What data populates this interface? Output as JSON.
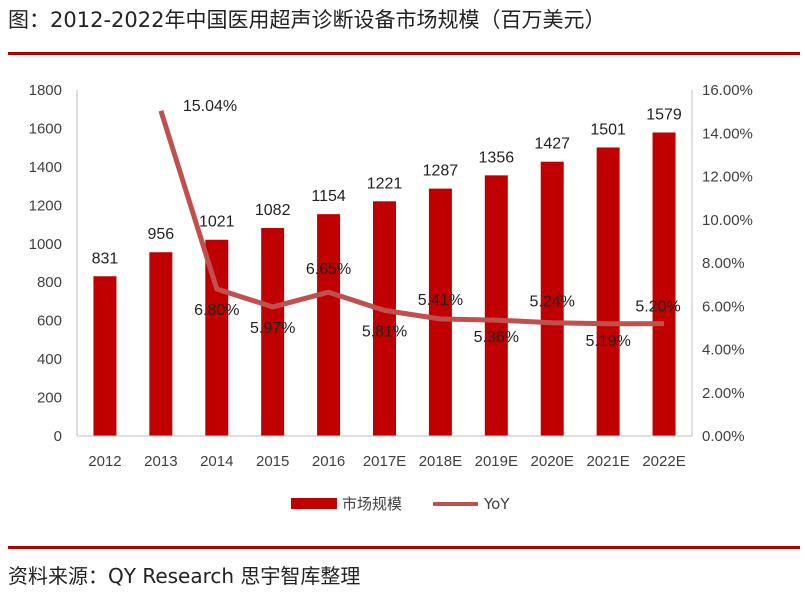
{
  "header": {
    "title": "图：2012-2022年中国医用超声诊断设备市场规模（百万美元）"
  },
  "footer": {
    "source": "资料来源：QY Research  思宇智库整理"
  },
  "chart_data": {
    "type": "bar",
    "categories": [
      "2012",
      "2013",
      "2014",
      "2015",
      "2016",
      "2017E",
      "2018E",
      "2019E",
      "2020E",
      "2021E",
      "2022E"
    ],
    "series": [
      {
        "name": "市场规模",
        "type": "bar",
        "axis": "left",
        "values": [
          831,
          956,
          1021,
          1082,
          1154,
          1221,
          1287,
          1356,
          1427,
          1501,
          1579
        ],
        "labels": [
          "831",
          "956",
          "1021",
          "1082",
          "1154",
          "1221",
          "1287",
          "1356",
          "1427",
          "1501",
          "1579"
        ],
        "color": "#c00000"
      },
      {
        "name": "YoY",
        "type": "line",
        "axis": "right",
        "values": [
          null,
          15.04,
          6.8,
          5.97,
          6.65,
          5.81,
          5.41,
          5.36,
          5.24,
          5.19,
          5.2
        ],
        "labels": [
          "",
          "15.04%",
          "6.80%",
          "5.97%",
          "6.65%",
          "5.81%",
          "5.41%",
          "5.36%",
          "5.24%",
          "5.19%",
          "5.20%"
        ],
        "color": "#c0504d"
      }
    ],
    "y_left": {
      "min": 0,
      "max": 1800,
      "step": 200,
      "ticks": [
        "0",
        "200",
        "400",
        "600",
        "800",
        "1000",
        "1200",
        "1400",
        "1600",
        "1800"
      ]
    },
    "y_right": {
      "min": 0,
      "max": 16,
      "step": 2,
      "ticks": [
        "0.00%",
        "2.00%",
        "4.00%",
        "6.00%",
        "8.00%",
        "10.00%",
        "12.00%",
        "14.00%",
        "16.00%"
      ]
    },
    "grid": false,
    "legend": "bottom"
  }
}
